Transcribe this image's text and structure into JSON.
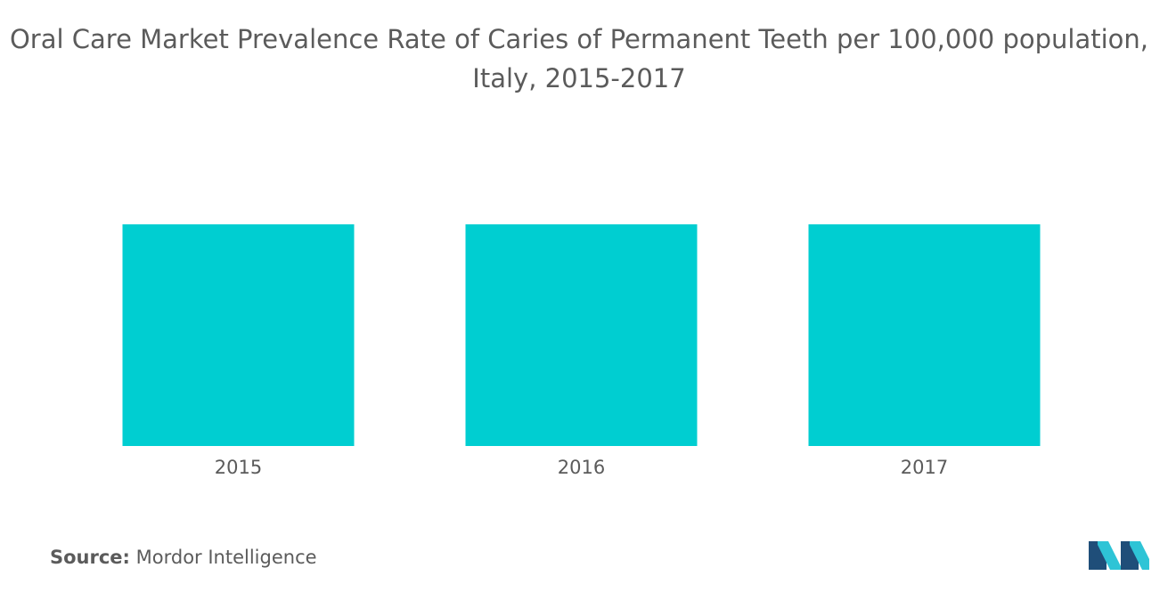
{
  "title_line1": "Oral Care Market Prevalence Rate of Caries of Permanent Teeth per 100,000 population,",
  "title_line2": "Italy, 2015-2017",
  "source_label": "Source:",
  "source_value": "Mordor Intelligence",
  "colors": {
    "bar": "#00CED1",
    "text": "#5b5b5b",
    "logo_dark": "#1f4e79",
    "logo_light": "#2ec4d6"
  },
  "chart_data": {
    "type": "bar",
    "categories": [
      "2015",
      "2016",
      "2017"
    ],
    "values": [
      1,
      1,
      1
    ],
    "title": "Oral Care Market Prevalence Rate of Caries of Permanent Teeth per 100,000 population, Italy, 2015-2017",
    "xlabel": "",
    "ylabel": "",
    "ylim": [
      0,
      1
    ],
    "grid": false,
    "legend": "none"
  }
}
